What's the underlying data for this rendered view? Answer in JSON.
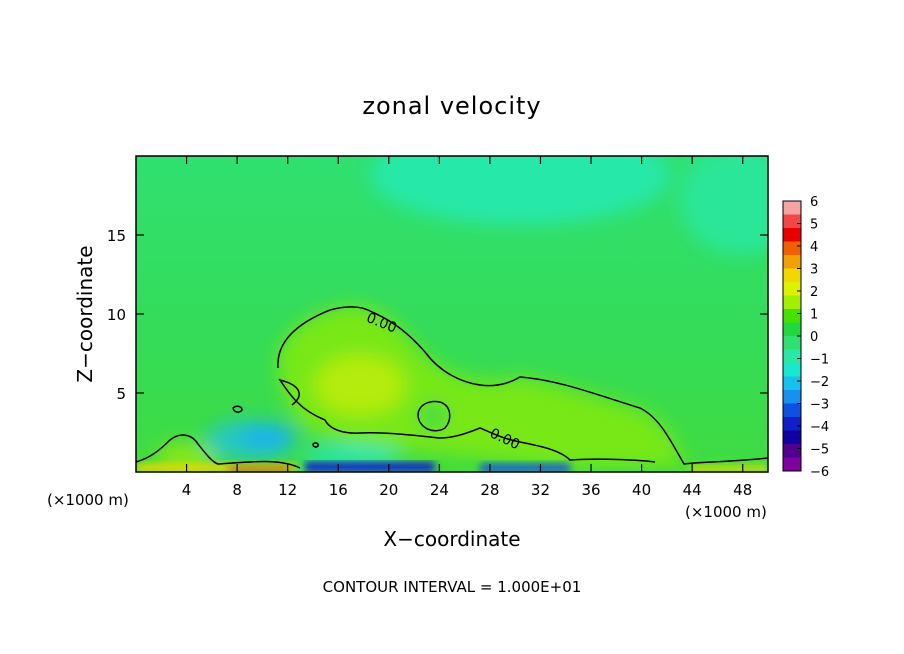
{
  "chart_data": {
    "type": "heatmap",
    "title": "zonal velocity",
    "xlabel": "X−coordinate",
    "ylabel": "Z−coordinate",
    "x_unit": "(×1000 m)",
    "z_unit": "(×1000 m)",
    "xlim": [
      0,
      50
    ],
    "ylim": [
      0,
      20
    ],
    "x_ticks": [
      4,
      8,
      12,
      16,
      20,
      24,
      28,
      32,
      36,
      40,
      44,
      48
    ],
    "y_ticks": [
      5,
      10,
      15
    ],
    "colorbar": {
      "ticks": [
        "6",
        "5",
        "4",
        "3",
        "2",
        "1",
        "0",
        "−1",
        "−2",
        "−3",
        "−4",
        "−5",
        "−6"
      ],
      "range": [
        -6,
        6
      ],
      "colors": [
        "#f4a4a4",
        "#f04848",
        "#e80000",
        "#f06000",
        "#f0a000",
        "#f0d800",
        "#e0f000",
        "#a0f000",
        "#48e000",
        "#20d840",
        "#30e070",
        "#28e8a8",
        "#18e8d0",
        "#18c0f0",
        "#1890f0",
        "#1050e0",
        "#1020c8",
        "#1000a0",
        "#500090",
        "#8000a0"
      ]
    },
    "contour_labels": [
      "0.00",
      "0.00"
    ],
    "contour_level": 0,
    "footer": "CONTOUR INTERVAL = 1.000E+01"
  }
}
